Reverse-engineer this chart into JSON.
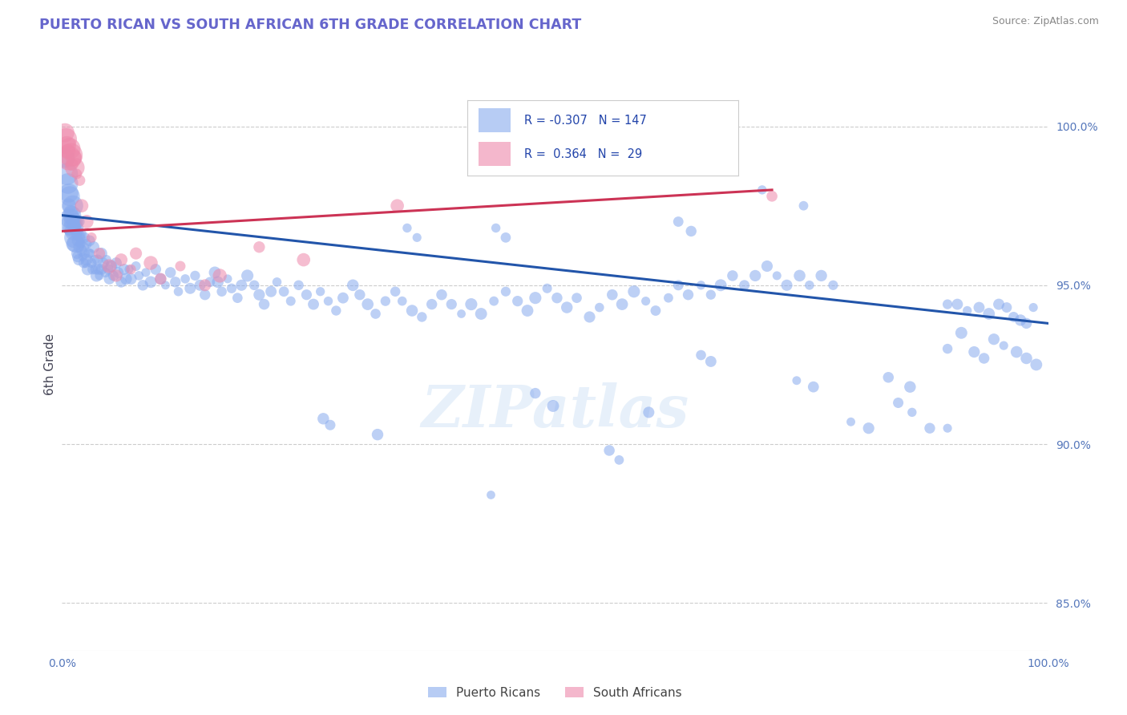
{
  "title": "PUERTO RICAN VS SOUTH AFRICAN 6TH GRADE CORRELATION CHART",
  "title_color": "#6666cc",
  "source_text": "Source: ZipAtlas.com",
  "ylabel": "6th Grade",
  "ylabel_color": "#444455",
  "right_ytick_labels": [
    "100.0%",
    "95.0%",
    "90.0%",
    "85.0%"
  ],
  "right_ytick_positions": [
    1.0,
    0.95,
    0.9,
    0.85
  ],
  "legend_r1": "-0.307",
  "legend_n1": "147",
  "legend_r2": "0.364",
  "legend_n2": "29",
  "blue_color": "#88aaee",
  "pink_color": "#ee88aa",
  "trend_blue": "#2255aa",
  "trend_pink": "#cc3355",
  "watermark": "ZIPatlas",
  "blue_trend_x": [
    0.0,
    1.0
  ],
  "blue_trend_y": [
    0.972,
    0.938
  ],
  "pink_trend_x": [
    0.0,
    0.72
  ],
  "pink_trend_y": [
    0.967,
    0.98
  ],
  "xlim": [
    0.0,
    1.0
  ],
  "ylim": [
    0.835,
    1.015
  ],
  "blue_scatter": [
    [
      0.003,
      0.99
    ],
    [
      0.005,
      0.985
    ],
    [
      0.006,
      0.982
    ],
    [
      0.007,
      0.979
    ],
    [
      0.007,
      0.975
    ],
    [
      0.008,
      0.978
    ],
    [
      0.008,
      0.971
    ],
    [
      0.009,
      0.973
    ],
    [
      0.009,
      0.969
    ],
    [
      0.01,
      0.972
    ],
    [
      0.01,
      0.968
    ],
    [
      0.011,
      0.975
    ],
    [
      0.011,
      0.97
    ],
    [
      0.012,
      0.967
    ],
    [
      0.012,
      0.963
    ],
    [
      0.013,
      0.97
    ],
    [
      0.013,
      0.965
    ],
    [
      0.014,
      0.968
    ],
    [
      0.014,
      0.963
    ],
    [
      0.015,
      0.966
    ],
    [
      0.015,
      0.96
    ],
    [
      0.016,
      0.964
    ],
    [
      0.016,
      0.959
    ],
    [
      0.017,
      0.962
    ],
    [
      0.017,
      0.958
    ],
    [
      0.018,
      0.97
    ],
    [
      0.018,
      0.965
    ],
    [
      0.019,
      0.963
    ],
    [
      0.02,
      0.966
    ],
    [
      0.02,
      0.961
    ],
    [
      0.021,
      0.959
    ],
    [
      0.022,
      0.962
    ],
    [
      0.022,
      0.957
    ],
    [
      0.023,
      0.965
    ],
    [
      0.023,
      0.96
    ],
    [
      0.024,
      0.957
    ],
    [
      0.025,
      0.963
    ],
    [
      0.025,
      0.958
    ],
    [
      0.026,
      0.955
    ],
    [
      0.027,
      0.96
    ],
    [
      0.028,
      0.964
    ],
    [
      0.029,
      0.96
    ],
    [
      0.03,
      0.957
    ],
    [
      0.031,
      0.955
    ],
    [
      0.032,
      0.962
    ],
    [
      0.033,
      0.958
    ],
    [
      0.034,
      0.955
    ],
    [
      0.035,
      0.953
    ],
    [
      0.036,
      0.958
    ],
    [
      0.037,
      0.955
    ],
    [
      0.038,
      0.953
    ],
    [
      0.04,
      0.96
    ],
    [
      0.04,
      0.955
    ],
    [
      0.042,
      0.957
    ],
    [
      0.044,
      0.954
    ],
    [
      0.045,
      0.958
    ],
    [
      0.047,
      0.955
    ],
    [
      0.048,
      0.952
    ],
    [
      0.05,
      0.956
    ],
    [
      0.052,
      0.953
    ],
    [
      0.055,
      0.957
    ],
    [
      0.057,
      0.954
    ],
    [
      0.06,
      0.951
    ],
    [
      0.063,
      0.955
    ],
    [
      0.065,
      0.952
    ],
    [
      0.068,
      0.955
    ],
    [
      0.07,
      0.952
    ],
    [
      0.075,
      0.956
    ],
    [
      0.078,
      0.953
    ],
    [
      0.082,
      0.95
    ],
    [
      0.085,
      0.954
    ],
    [
      0.09,
      0.951
    ],
    [
      0.095,
      0.955
    ],
    [
      0.1,
      0.952
    ],
    [
      0.105,
      0.95
    ],
    [
      0.11,
      0.954
    ],
    [
      0.115,
      0.951
    ],
    [
      0.118,
      0.948
    ],
    [
      0.125,
      0.952
    ],
    [
      0.13,
      0.949
    ],
    [
      0.135,
      0.953
    ],
    [
      0.14,
      0.95
    ],
    [
      0.145,
      0.947
    ],
    [
      0.15,
      0.951
    ],
    [
      0.155,
      0.954
    ],
    [
      0.158,
      0.951
    ],
    [
      0.162,
      0.948
    ],
    [
      0.168,
      0.952
    ],
    [
      0.172,
      0.949
    ],
    [
      0.178,
      0.946
    ],
    [
      0.182,
      0.95
    ],
    [
      0.188,
      0.953
    ],
    [
      0.195,
      0.95
    ],
    [
      0.2,
      0.947
    ],
    [
      0.205,
      0.944
    ],
    [
      0.212,
      0.948
    ],
    [
      0.218,
      0.951
    ],
    [
      0.225,
      0.948
    ],
    [
      0.232,
      0.945
    ],
    [
      0.24,
      0.95
    ],
    [
      0.248,
      0.947
    ],
    [
      0.255,
      0.944
    ],
    [
      0.262,
      0.948
    ],
    [
      0.27,
      0.945
    ],
    [
      0.278,
      0.942
    ],
    [
      0.285,
      0.946
    ],
    [
      0.295,
      0.95
    ],
    [
      0.302,
      0.947
    ],
    [
      0.31,
      0.944
    ],
    [
      0.318,
      0.941
    ],
    [
      0.328,
      0.945
    ],
    [
      0.338,
      0.948
    ],
    [
      0.345,
      0.945
    ],
    [
      0.355,
      0.942
    ],
    [
      0.365,
      0.94
    ],
    [
      0.375,
      0.944
    ],
    [
      0.385,
      0.947
    ],
    [
      0.395,
      0.944
    ],
    [
      0.405,
      0.941
    ],
    [
      0.415,
      0.944
    ],
    [
      0.425,
      0.941
    ],
    [
      0.438,
      0.945
    ],
    [
      0.45,
      0.948
    ],
    [
      0.462,
      0.945
    ],
    [
      0.472,
      0.942
    ],
    [
      0.48,
      0.946
    ],
    [
      0.492,
      0.949
    ],
    [
      0.502,
      0.946
    ],
    [
      0.512,
      0.943
    ],
    [
      0.522,
      0.946
    ],
    [
      0.535,
      0.94
    ],
    [
      0.545,
      0.943
    ],
    [
      0.558,
      0.947
    ],
    [
      0.568,
      0.944
    ],
    [
      0.58,
      0.948
    ],
    [
      0.592,
      0.945
    ],
    [
      0.602,
      0.942
    ],
    [
      0.615,
      0.946
    ],
    [
      0.625,
      0.95
    ],
    [
      0.635,
      0.947
    ],
    [
      0.648,
      0.95
    ],
    [
      0.658,
      0.947
    ],
    [
      0.668,
      0.95
    ],
    [
      0.68,
      0.953
    ],
    [
      0.692,
      0.95
    ],
    [
      0.703,
      0.953
    ],
    [
      0.715,
      0.956
    ],
    [
      0.725,
      0.953
    ],
    [
      0.735,
      0.95
    ],
    [
      0.748,
      0.953
    ],
    [
      0.758,
      0.95
    ],
    [
      0.77,
      0.953
    ],
    [
      0.782,
      0.95
    ],
    [
      0.898,
      0.944
    ],
    [
      0.908,
      0.944
    ],
    [
      0.918,
      0.942
    ],
    [
      0.93,
      0.943
    ],
    [
      0.94,
      0.941
    ],
    [
      0.95,
      0.944
    ],
    [
      0.958,
      0.943
    ],
    [
      0.965,
      0.94
    ],
    [
      0.972,
      0.939
    ],
    [
      0.978,
      0.938
    ],
    [
      0.985,
      0.943
    ],
    [
      0.838,
      0.921
    ],
    [
      0.86,
      0.918
    ],
    [
      0.898,
      0.93
    ],
    [
      0.912,
      0.935
    ],
    [
      0.925,
      0.929
    ],
    [
      0.935,
      0.927
    ],
    [
      0.945,
      0.933
    ],
    [
      0.955,
      0.931
    ],
    [
      0.968,
      0.929
    ],
    [
      0.978,
      0.927
    ],
    [
      0.988,
      0.925
    ],
    [
      0.35,
      0.968
    ],
    [
      0.36,
      0.965
    ],
    [
      0.44,
      0.968
    ],
    [
      0.45,
      0.965
    ],
    [
      0.625,
      0.97
    ],
    [
      0.638,
      0.967
    ],
    [
      0.71,
      0.98
    ],
    [
      0.752,
      0.975
    ],
    [
      0.265,
      0.908
    ],
    [
      0.272,
      0.906
    ],
    [
      0.32,
      0.903
    ],
    [
      0.435,
      0.884
    ],
    [
      0.48,
      0.916
    ],
    [
      0.498,
      0.912
    ],
    [
      0.555,
      0.898
    ],
    [
      0.565,
      0.895
    ],
    [
      0.595,
      0.91
    ],
    [
      0.648,
      0.928
    ],
    [
      0.658,
      0.926
    ],
    [
      0.745,
      0.92
    ],
    [
      0.762,
      0.918
    ],
    [
      0.8,
      0.907
    ],
    [
      0.818,
      0.905
    ],
    [
      0.848,
      0.913
    ],
    [
      0.862,
      0.91
    ],
    [
      0.88,
      0.905
    ],
    [
      0.898,
      0.905
    ]
  ],
  "pink_scatter": [
    [
      0.003,
      0.998
    ],
    [
      0.004,
      0.996
    ],
    [
      0.005,
      0.994
    ],
    [
      0.006,
      0.992
    ],
    [
      0.007,
      0.99
    ],
    [
      0.008,
      0.993
    ],
    [
      0.009,
      0.991
    ],
    [
      0.01,
      0.988
    ],
    [
      0.012,
      0.99
    ],
    [
      0.013,
      0.987
    ],
    [
      0.015,
      0.985
    ],
    [
      0.018,
      0.983
    ],
    [
      0.02,
      0.975
    ],
    [
      0.025,
      0.97
    ],
    [
      0.03,
      0.965
    ],
    [
      0.038,
      0.96
    ],
    [
      0.048,
      0.956
    ],
    [
      0.055,
      0.953
    ],
    [
      0.06,
      0.958
    ],
    [
      0.07,
      0.955
    ],
    [
      0.075,
      0.96
    ],
    [
      0.09,
      0.957
    ],
    [
      0.1,
      0.952
    ],
    [
      0.12,
      0.956
    ],
    [
      0.145,
      0.95
    ],
    [
      0.16,
      0.953
    ],
    [
      0.2,
      0.962
    ],
    [
      0.245,
      0.958
    ],
    [
      0.34,
      0.975
    ],
    [
      0.72,
      0.978
    ]
  ],
  "blue_sizes_seed": 123,
  "blue_size_min": 60,
  "blue_size_max": 120,
  "blue_size_large": 400,
  "pink_size_min": 80,
  "pink_size_max": 160,
  "pink_size_large": 500
}
